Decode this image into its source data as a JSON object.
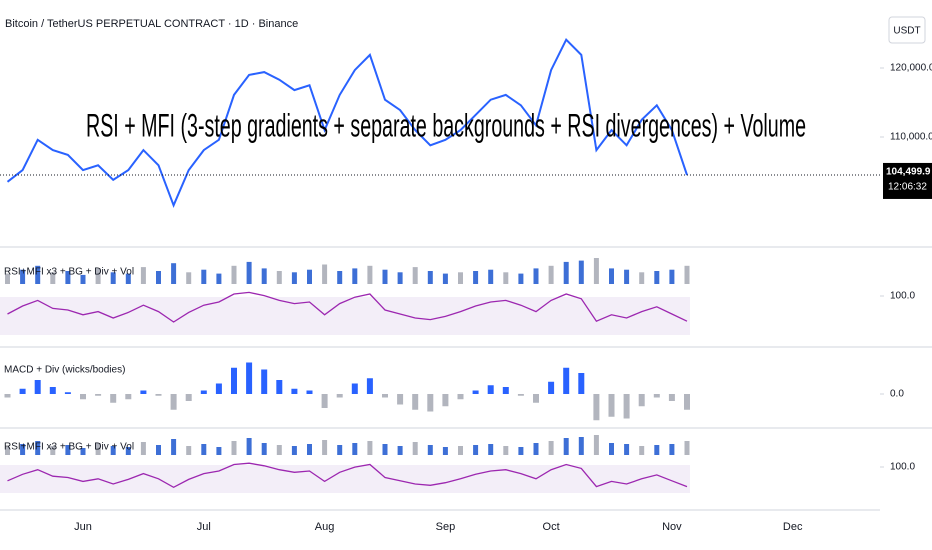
{
  "header": {
    "symbol": "Bitcoin / TetherUS PERPETUAL CONTRACT · 1D · Binance",
    "currency": "USDT",
    "overlay_title": "RSI + MFI (3-step gradients + separate backgrounds + RSI divergences) + Volume",
    "countdown": "12:06:32"
  },
  "chart_data": [
    {
      "type": "line",
      "name": "price",
      "categories": [
        null,
        null,
        null,
        null,
        null,
        "Jun",
        null,
        null,
        null,
        null,
        null,
        null,
        null,
        "Jul",
        null,
        null,
        null,
        null,
        null,
        null,
        null,
        "Aug",
        null,
        null,
        null,
        null,
        null,
        null,
        null,
        "Sep",
        null,
        null,
        null,
        null,
        null,
        null,
        "Oct",
        null,
        null,
        null,
        null,
        null,
        null,
        null,
        "Nov",
        null,
        null,
        null,
        null,
        null,
        null,
        null,
        "Dec"
      ],
      "values": [
        103500,
        105200,
        109600,
        108100,
        107400,
        105200,
        105900,
        103800,
        105200,
        108100,
        105900,
        100100,
        105200,
        108100,
        109600,
        116100,
        119000,
        119400,
        118300,
        116800,
        117500,
        111000,
        116100,
        119700,
        121900,
        115400,
        113900,
        111000,
        108800,
        109600,
        111000,
        113200,
        115400,
        116100,
        114600,
        111700,
        119700,
        124100,
        121900,
        108100,
        111000,
        108800,
        112500,
        114600,
        111000,
        104499.9,
        null,
        null,
        null,
        null,
        null,
        null,
        null
      ],
      "color": "#2962ff",
      "ylim": [
        95000,
        130000
      ],
      "yticks": [
        {
          "value": 120000,
          "label": "120,000.0"
        },
        {
          "value": 110000,
          "label": "110,000.0"
        }
      ],
      "last_price": {
        "value": 104499.9,
        "label": "104,499.9"
      }
    },
    {
      "type": "oscillator",
      "name": "RSI+MFI x3 + BG + Div + Vol",
      "rsi": [
        45,
        55,
        62,
        52,
        50,
        44,
        48,
        40,
        47,
        56,
        48,
        35,
        47,
        56,
        60,
        70,
        72,
        68,
        62,
        58,
        60,
        44,
        58,
        66,
        70,
        50,
        45,
        40,
        38,
        42,
        48,
        55,
        60,
        62,
        56,
        48,
        62,
        70,
        64,
        36,
        44,
        40,
        48,
        54,
        45,
        36
      ],
      "volume": [
        40,
        55,
        70,
        45,
        50,
        35,
        60,
        45,
        40,
        65,
        50,
        80,
        45,
        55,
        40,
        70,
        85,
        60,
        50,
        45,
        55,
        75,
        50,
        60,
        70,
        55,
        45,
        65,
        50,
        40,
        45,
        50,
        55,
        45,
        40,
        60,
        70,
        85,
        90,
        100,
        60,
        55,
        45,
        50,
        55,
        70
      ],
      "rsi_color": "#9c27b0",
      "volume_color": "#3d6fd6",
      "ylim": [
        0,
        100
      ],
      "yticks": [
        {
          "value": 100,
          "label": "100.0"
        }
      ]
    },
    {
      "type": "histogram",
      "name": "MACD + Div (wicks/bodies)",
      "values": [
        -200,
        300,
        800,
        400,
        100,
        -300,
        -100,
        -500,
        -300,
        200,
        -100,
        -900,
        -400,
        200,
        600,
        1500,
        1800,
        1400,
        800,
        300,
        200,
        -800,
        -200,
        600,
        900,
        -200,
        -600,
        -900,
        -1000,
        -700,
        -300,
        200,
        500,
        400,
        -100,
        -500,
        700,
        1500,
        1200,
        -1500,
        -1300,
        -1400,
        -700,
        -200,
        -400,
        -900
      ],
      "color": "#2962ff",
      "negative_color": "#b2b5be",
      "ylim": [
        -2000,
        2000
      ],
      "yticks": [
        {
          "value": 0,
          "label": "0.0"
        }
      ]
    },
    {
      "type": "oscillator",
      "name": "RSI+MFI x3 + BG + Div + Vol",
      "rsi": [
        45,
        55,
        62,
        52,
        50,
        44,
        48,
        40,
        47,
        56,
        48,
        35,
        47,
        56,
        60,
        70,
        72,
        68,
        62,
        58,
        60,
        44,
        58,
        66,
        70,
        50,
        45,
        40,
        38,
        42,
        48,
        55,
        60,
        62,
        56,
        48,
        62,
        70,
        64,
        36,
        44,
        40,
        48,
        54,
        45,
        36
      ],
      "volume": [
        40,
        55,
        70,
        45,
        50,
        35,
        60,
        45,
        40,
        65,
        50,
        80,
        45,
        55,
        40,
        70,
        85,
        60,
        50,
        45,
        55,
        75,
        50,
        60,
        70,
        55,
        45,
        65,
        50,
        40,
        45,
        50,
        55,
        45,
        40,
        60,
        70,
        85,
        90,
        100,
        60,
        55,
        45,
        50,
        55,
        70
      ],
      "rsi_color": "#9c27b0",
      "volume_color": "#3d6fd6",
      "ylim": [
        0,
        100
      ],
      "yticks": [
        {
          "value": 100,
          "label": "100.0"
        }
      ]
    }
  ]
}
